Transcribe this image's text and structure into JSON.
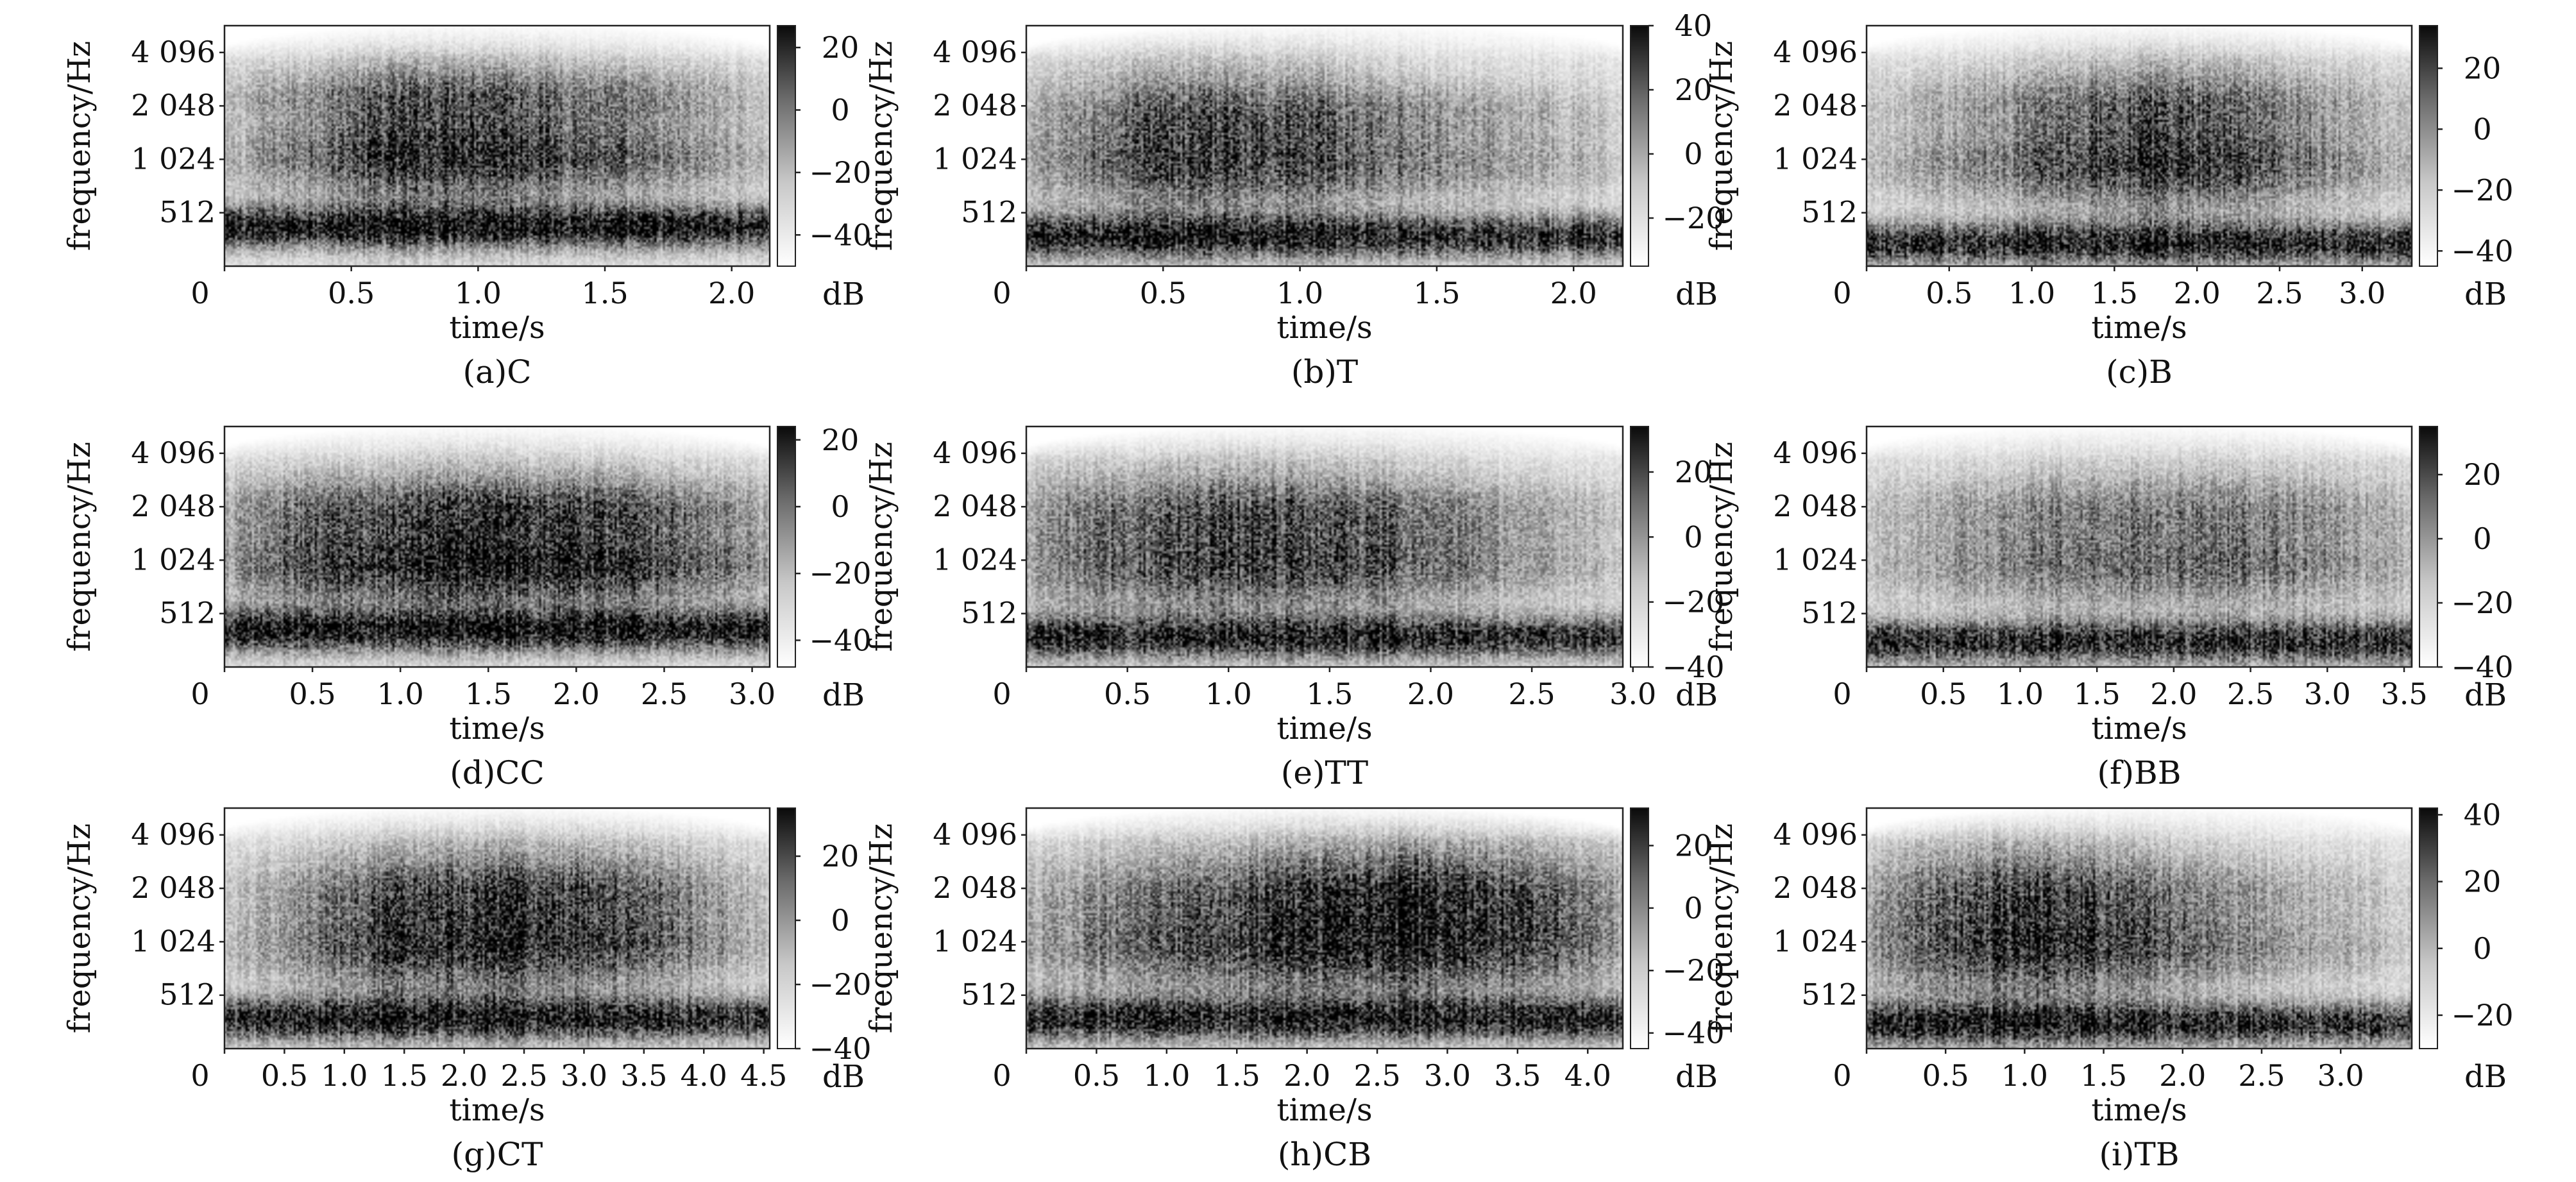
{
  "figure": {
    "panel_count": 9,
    "colormap": "greys (white = low, black = high)",
    "colorbar_unit": "dB"
  },
  "chart_data": [
    {
      "id": "a",
      "type": "heatmap",
      "caption": "(a)C",
      "xlabel": "time/s",
      "ylabel": "frequency/Hz",
      "x_ticks": [
        "0",
        "0.5",
        "1.0",
        "1.5",
        "2.0"
      ],
      "x_tick_values": [
        0,
        0.5,
        1.0,
        1.5,
        2.0
      ],
      "xlim": [
        0,
        2.15
      ],
      "y_ticks": [
        "512",
        "1 024",
        "2 048",
        "4 096"
      ],
      "y_tick_values": [
        512,
        1024,
        2048,
        4096
      ],
      "y_scale": "log2",
      "colorbar": {
        "label": "dB",
        "ticks": [
          "20",
          "0",
          "−20",
          "−40"
        ],
        "tick_values": [
          20,
          0,
          -20,
          -40
        ],
        "range": [
          -50,
          27
        ]
      },
      "features": {
        "low_band": [
          0.95,
          0.16
        ],
        "mid_band": [
          0.55,
          0.45
        ],
        "hi_band": [
          0.42,
          0.7
        ],
        "blob": [
          0.42,
          0.9,
          0.18
        ],
        "blob2": null
      }
    },
    {
      "id": "b",
      "type": "heatmap",
      "caption": "(b)T",
      "xlabel": "time/s",
      "ylabel": "frequency/Hz",
      "x_ticks": [
        "0",
        "0.5",
        "1.0",
        "1.5",
        "2.0"
      ],
      "x_tick_values": [
        0,
        0.5,
        1.0,
        1.5,
        2.0
      ],
      "xlim": [
        0,
        2.18
      ],
      "y_ticks": [
        "512",
        "1 024",
        "2 048",
        "4 096"
      ],
      "y_tick_values": [
        512,
        1024,
        2048,
        4096
      ],
      "y_scale": "log2",
      "colorbar": {
        "label": "dB",
        "ticks": [
          "40",
          "20",
          "0",
          "−20"
        ],
        "tick_values": [
          40,
          20,
          0,
          -20
        ],
        "range": [
          -35,
          40
        ]
      },
      "features": {
        "low_band": [
          0.9,
          0.12
        ],
        "mid_band": [
          0.4,
          0.42
        ],
        "hi_band": [
          0.3,
          0.65
        ],
        "blob": [
          0.45,
          0.7,
          0.2
        ],
        "blob2": null
      }
    },
    {
      "id": "c",
      "type": "heatmap",
      "caption": "(c)B",
      "xlabel": "time/s",
      "ylabel": "frequency/Hz",
      "x_ticks": [
        "0",
        "0.5",
        "1.0",
        "1.5",
        "2.0",
        "2.5",
        "3.0"
      ],
      "x_tick_values": [
        0,
        0.5,
        1.0,
        1.5,
        2.0,
        2.5,
        3.0
      ],
      "xlim": [
        0,
        3.3
      ],
      "y_ticks": [
        "512",
        "1 024",
        "2 048",
        "4 096"
      ],
      "y_tick_values": [
        512,
        1024,
        2048,
        4096
      ],
      "y_scale": "log2",
      "colorbar": {
        "label": "dB",
        "ticks": [
          "20",
          "0",
          "−20",
          "−40"
        ],
        "tick_values": [
          20,
          0,
          -20,
          -40
        ],
        "range": [
          -45,
          34
        ]
      },
      "features": {
        "low_band": [
          0.85,
          0.09
        ],
        "mid_band": [
          0.45,
          0.42
        ],
        "hi_band": [
          0.3,
          0.68
        ],
        "blob": [
          0.45,
          1.8,
          0.2
        ],
        "blob2": null
      }
    },
    {
      "id": "d",
      "type": "heatmap",
      "caption": "(d)CC",
      "xlabel": "time/s",
      "ylabel": "frequency/Hz",
      "x_ticks": [
        "0",
        "0.5",
        "1.0",
        "1.5",
        "2.0",
        "2.5",
        "3.0"
      ],
      "x_tick_values": [
        0,
        0.5,
        1.0,
        1.5,
        2.0,
        2.5,
        3.0
      ],
      "xlim": [
        0,
        3.1
      ],
      "y_ticks": [
        "512",
        "1 024",
        "2 048",
        "4 096"
      ],
      "y_tick_values": [
        512,
        1024,
        2048,
        4096
      ],
      "y_scale": "log2",
      "colorbar": {
        "label": "dB",
        "ticks": [
          "20",
          "0",
          "−20",
          "−40"
        ],
        "tick_values": [
          20,
          0,
          -20,
          -40
        ],
        "range": [
          -48,
          24
        ]
      },
      "features": {
        "low_band": [
          0.95,
          0.15
        ],
        "mid_band": [
          0.75,
          0.42
        ],
        "hi_band": [
          0.55,
          0.66
        ],
        "blob": [
          0.3,
          1.5,
          0.3
        ],
        "blob2": null
      }
    },
    {
      "id": "e",
      "type": "heatmap",
      "caption": "(e)TT",
      "xlabel": "time/s",
      "ylabel": "frequency/Hz",
      "x_ticks": [
        "0",
        "0.5",
        "1.0",
        "1.5",
        "2.0",
        "2.5",
        "3.0"
      ],
      "x_tick_values": [
        0,
        0.5,
        1.0,
        1.5,
        2.0,
        2.5,
        3.0
      ],
      "xlim": [
        0,
        2.95
      ],
      "y_ticks": [
        "512",
        "1 024",
        "2 048",
        "4 096"
      ],
      "y_tick_values": [
        512,
        1024,
        2048,
        4096
      ],
      "y_scale": "log2",
      "colorbar": {
        "label": "dB",
        "ticks": [
          "20",
          "0",
          "−20",
          "−40"
        ],
        "tick_values": [
          20,
          0,
          -20,
          -40
        ],
        "range": [
          -40,
          34
        ]
      },
      "features": {
        "low_band": [
          0.85,
          0.12
        ],
        "mid_band": [
          0.4,
          0.42
        ],
        "hi_band": [
          0.35,
          0.65
        ],
        "blob": [
          0.45,
          1.0,
          0.25
        ],
        "blob2": null
      }
    },
    {
      "id": "f",
      "type": "heatmap",
      "caption": "(f)BB",
      "xlabel": "time/s",
      "ylabel": "frequency/Hz",
      "x_ticks": [
        "0",
        "0.5",
        "1.0",
        "1.5",
        "2.0",
        "2.5",
        "3.0",
        "3.5"
      ],
      "x_tick_values": [
        0,
        0.5,
        1.0,
        1.5,
        2.0,
        2.5,
        3.0,
        3.5
      ],
      "xlim": [
        0,
        3.55
      ],
      "y_ticks": [
        "512",
        "1 024",
        "2 048",
        "4 096"
      ],
      "y_tick_values": [
        512,
        1024,
        2048,
        4096
      ],
      "y_scale": "log2",
      "colorbar": {
        "label": "dB",
        "ticks": [
          "20",
          "0",
          "−20",
          "−40"
        ],
        "tick_values": [
          20,
          0,
          -20,
          -40
        ],
        "range": [
          -40,
          35
        ]
      },
      "features": {
        "low_band": [
          0.85,
          0.1
        ],
        "mid_band": [
          0.35,
          0.42
        ],
        "hi_band": [
          0.28,
          0.66
        ],
        "blob": [
          0.25,
          2.0,
          0.3
        ],
        "blob2": null
      }
    },
    {
      "id": "g",
      "type": "heatmap",
      "caption": "(g)CT",
      "xlabel": "time/s",
      "ylabel": "frequency/Hz",
      "x_ticks": [
        "0",
        "0.5",
        "1.0",
        "1.5",
        "2.0",
        "2.5",
        "3.0",
        "3.5",
        "4.0",
        "4.5"
      ],
      "x_tick_values": [
        0,
        0.5,
        1.0,
        1.5,
        2.0,
        2.5,
        3.0,
        3.5,
        4.0,
        4.5
      ],
      "xlim": [
        0,
        4.55
      ],
      "y_ticks": [
        "512",
        "1 024",
        "2 048",
        "4 096"
      ],
      "y_tick_values": [
        512,
        1024,
        2048,
        4096
      ],
      "y_scale": "log2",
      "colorbar": {
        "label": "dB",
        "ticks": [
          "20",
          "0",
          "−20",
          "−40"
        ],
        "tick_values": [
          20,
          0,
          -20,
          -40
        ],
        "range": [
          -40,
          35
        ]
      },
      "features": {
        "low_band": [
          0.9,
          0.12
        ],
        "mid_band": [
          0.4,
          0.42
        ],
        "hi_band": [
          0.3,
          0.66
        ],
        "blob": [
          0.45,
          1.8,
          0.18
        ],
        "blob2": [
          0.35,
          3.1,
          0.18
        ]
      }
    },
    {
      "id": "h",
      "type": "heatmap",
      "caption": "(h)CB",
      "xlabel": "time/s",
      "ylabel": "frequency/Hz",
      "x_ticks": [
        "0",
        "0.5",
        "1.0",
        "1.5",
        "2.0",
        "2.5",
        "3.0",
        "3.5",
        "4.0"
      ],
      "x_tick_values": [
        0,
        0.5,
        1.0,
        1.5,
        2.0,
        2.5,
        3.0,
        3.5,
        4.0
      ],
      "xlim": [
        0,
        4.25
      ],
      "y_ticks": [
        "512",
        "1 024",
        "2 048",
        "4 096"
      ],
      "y_tick_values": [
        512,
        1024,
        2048,
        4096
      ],
      "y_scale": "log2",
      "colorbar": {
        "label": "dB",
        "ticks": [
          "20",
          "0",
          "−20",
          "−40"
        ],
        "tick_values": [
          20,
          0,
          -20,
          -40
        ],
        "range": [
          -45,
          32
        ]
      },
      "features": {
        "low_band": [
          0.85,
          0.12
        ],
        "mid_band": [
          0.35,
          0.42
        ],
        "hi_band": [
          0.25,
          0.66
        ],
        "blob": [
          0.3,
          1.5,
          0.3
        ],
        "blob2": [
          0.6,
          2.9,
          0.22
        ]
      }
    },
    {
      "id": "i",
      "type": "heatmap",
      "caption": "(i)TB",
      "xlabel": "time/s",
      "ylabel": "frequency/Hz",
      "x_ticks": [
        "0",
        "0.5",
        "1.0",
        "1.5",
        "2.0",
        "2.5",
        "3.0"
      ],
      "x_tick_values": [
        0,
        0.5,
        1.0,
        1.5,
        2.0,
        2.5,
        3.0
      ],
      "xlim": [
        0,
        3.45
      ],
      "y_ticks": [
        "512",
        "1 024",
        "2 048",
        "4 096"
      ],
      "y_tick_values": [
        512,
        1024,
        2048,
        4096
      ],
      "y_scale": "log2",
      "colorbar": {
        "label": "dB",
        "ticks": [
          "40",
          "20",
          "0",
          "−20"
        ],
        "tick_values": [
          40,
          20,
          0,
          -20
        ],
        "range": [
          -30,
          42
        ]
      },
      "features": {
        "low_band": [
          0.85,
          0.1
        ],
        "mid_band": [
          0.35,
          0.42
        ],
        "hi_band": [
          0.25,
          0.66
        ],
        "blob": [
          0.6,
          1.05,
          0.22
        ],
        "blob2": null
      }
    }
  ]
}
